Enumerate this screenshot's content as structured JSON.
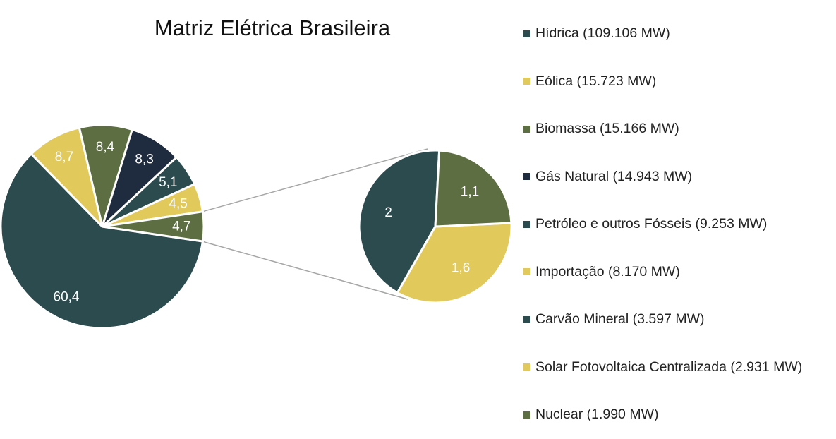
{
  "chart_data": {
    "type": "pie",
    "subtype": "pie-of-pie",
    "title": "Matriz Elétrica Brasileira",
    "legend_position": "right",
    "main_pie": {
      "slices": [
        {
          "label": "60,4",
          "value": 60.4,
          "color": "#2b4b4f"
        },
        {
          "label": "8,7",
          "value": 8.7,
          "color": "#e1c95c"
        },
        {
          "label": "8,4",
          "value": 8.4,
          "color": "#5d6e42"
        },
        {
          "label": "8,3",
          "value": 8.3,
          "color": "#1f2b3e"
        },
        {
          "label": "5,1",
          "value": 5.1,
          "color": "#2b4b4f"
        },
        {
          "label": "4,5",
          "value": 4.5,
          "color": "#e1c95c"
        },
        {
          "label": "4,7",
          "value": 4.7,
          "color": "#5d6e42"
        }
      ]
    },
    "secondary_pie": {
      "slices": [
        {
          "label": "2",
          "value": 2.0,
          "color": "#2b4b4f"
        },
        {
          "label": "1,6",
          "value": 1.6,
          "color": "#e1c95c"
        },
        {
          "label": "1,1",
          "value": 1.1,
          "color": "#5d6e42"
        }
      ]
    },
    "legend": [
      {
        "label": "Hídrica (109.106 MW)",
        "color": "#2b4b4f"
      },
      {
        "label": "Eólica (15.723 MW)",
        "color": "#e1c95c"
      },
      {
        "label": "Biomassa (15.166 MW)",
        "color": "#5d6e42"
      },
      {
        "label": "Gás Natural (14.943 MW)",
        "color": "#1f2b3e"
      },
      {
        "label": "Petróleo e outros Fósseis (9.253 MW)",
        "color": "#2b4b4f"
      },
      {
        "label": "Importação (8.170 MW)",
        "color": "#e1c95c"
      },
      {
        "label": "Carvão Mineral (3.597 MW)",
        "color": "#2b4b4f"
      },
      {
        "label": "Solar Fotovoltaica Centralizada (2.931 MW)",
        "color": "#e1c95c"
      },
      {
        "label": "Nuclear (1.990 MW)",
        "color": "#5d6e42"
      }
    ]
  }
}
